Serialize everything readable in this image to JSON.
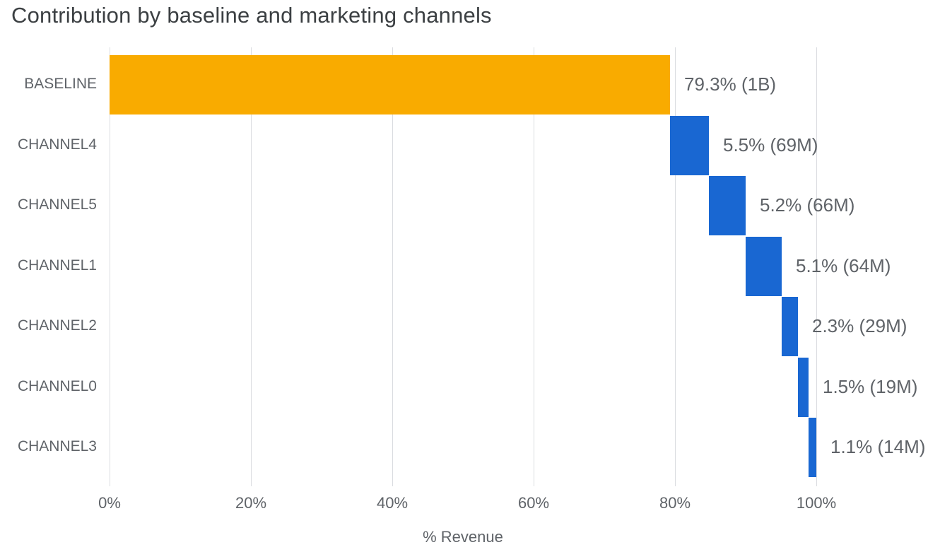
{
  "chart_data": {
    "type": "bar",
    "variant": "horizontal-waterfall",
    "title": "Contribution by baseline and marketing channels",
    "xlabel": "% Revenue",
    "x_ticks": [
      "0%",
      "20%",
      "40%",
      "60%",
      "80%",
      "100%"
    ],
    "x_tick_values": [
      0,
      20,
      40,
      60,
      80,
      100
    ],
    "xlim": [
      0,
      117.5
    ],
    "grid": "vertical",
    "legend": "none",
    "categories": [
      "BASELINE",
      "CHANNEL4",
      "CHANNEL5",
      "CHANNEL1",
      "CHANNEL2",
      "CHANNEL0",
      "CHANNEL3"
    ],
    "series": [
      {
        "name": "contribution_pct",
        "values": [
          79.3,
          5.5,
          5.2,
          5.1,
          2.3,
          1.5,
          1.1
        ]
      }
    ],
    "bars": [
      {
        "category": "BASELINE",
        "pct": 79.3,
        "start_pct": 0,
        "end_pct": 79.3,
        "label": "79.3% (1B)",
        "value": "1B",
        "color": "#f9ab00"
      },
      {
        "category": "CHANNEL4",
        "pct": 5.5,
        "start_pct": 79.3,
        "end_pct": 84.8,
        "label": "5.5% (69M)",
        "value": "69M",
        "color": "#1967d2"
      },
      {
        "category": "CHANNEL5",
        "pct": 5.2,
        "start_pct": 84.8,
        "end_pct": 90.0,
        "label": "5.2% (66M)",
        "value": "66M",
        "color": "#1967d2"
      },
      {
        "category": "CHANNEL1",
        "pct": 5.1,
        "start_pct": 90.0,
        "end_pct": 95.1,
        "label": "5.1% (64M)",
        "value": "64M",
        "color": "#1967d2"
      },
      {
        "category": "CHANNEL2",
        "pct": 2.3,
        "start_pct": 95.1,
        "end_pct": 97.4,
        "label": "2.3% (29M)",
        "value": "29M",
        "color": "#1967d2"
      },
      {
        "category": "CHANNEL0",
        "pct": 1.5,
        "start_pct": 97.4,
        "end_pct": 98.9,
        "label": "1.5% (19M)",
        "value": "19M",
        "color": "#1967d2"
      },
      {
        "category": "CHANNEL3",
        "pct": 1.1,
        "start_pct": 98.9,
        "end_pct": 100.0,
        "label": "1.1% (14M)",
        "value": "14M",
        "color": "#1967d2"
      }
    ],
    "colors": {
      "baseline_bar": "#f9ab00",
      "channel_bar": "#1967d2",
      "gridline": "#dadce0",
      "title_text": "#3c4043",
      "axis_text": "#5f6368"
    }
  }
}
